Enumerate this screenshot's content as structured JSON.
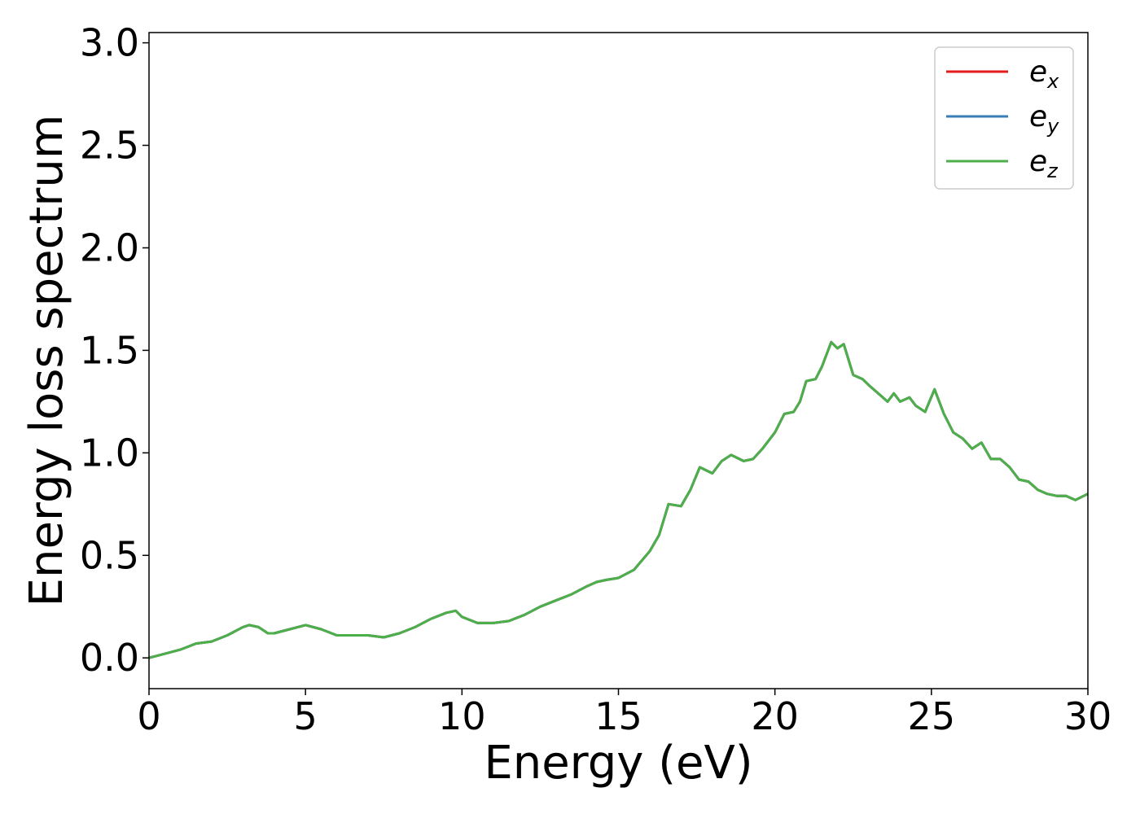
{
  "chart_data": {
    "type": "line",
    "xlabel": "Energy (eV)",
    "ylabel": "Energy loss spectrum",
    "xlim": [
      0,
      30
    ],
    "ylim": [
      -0.15,
      3.05
    ],
    "xticks": [
      "0",
      "5",
      "10",
      "15",
      "20",
      "25",
      "30"
    ],
    "yticks": [
      "0.0",
      "0.5",
      "1.0",
      "1.5",
      "2.0",
      "2.5",
      "3.0"
    ],
    "grid": false,
    "legend_position": "top-right",
    "x": [
      0,
      0.5,
      1.0,
      1.5,
      2.0,
      2.5,
      3.0,
      3.2,
      3.5,
      3.8,
      4.0,
      4.5,
      5.0,
      5.5,
      6.0,
      6.5,
      7.0,
      7.5,
      8.0,
      8.5,
      9.0,
      9.5,
      9.8,
      10.0,
      10.5,
      11.0,
      11.5,
      12.0,
      12.5,
      13.0,
      13.5,
      14.0,
      14.3,
      14.6,
      15.0,
      15.5,
      16.0,
      16.3,
      16.6,
      17.0,
      17.3,
      17.6,
      18.0,
      18.3,
      18.6,
      19.0,
      19.3,
      19.6,
      20.0,
      20.3,
      20.6,
      20.8,
      21.0,
      21.3,
      21.5,
      21.8,
      22.0,
      22.2,
      22.5,
      22.8,
      23.0,
      23.3,
      23.6,
      23.8,
      24.0,
      24.3,
      24.5,
      24.8,
      25.1,
      25.4,
      25.7,
      26.0,
      26.3,
      26.6,
      26.9,
      27.2,
      27.5,
      27.8,
      28.1,
      28.4,
      28.7,
      29.0,
      29.3,
      29.6,
      30.0
    ],
    "series": [
      {
        "name": "e_x",
        "color": "#e41a1c",
        "values": [
          0.0,
          0.02,
          0.04,
          0.07,
          0.08,
          0.11,
          0.15,
          0.16,
          0.15,
          0.12,
          0.12,
          0.14,
          0.16,
          0.14,
          0.11,
          0.11,
          0.11,
          0.1,
          0.12,
          0.15,
          0.19,
          0.22,
          0.23,
          0.2,
          0.17,
          0.17,
          0.18,
          0.21,
          0.25,
          0.28,
          0.31,
          0.35,
          0.37,
          0.38,
          0.39,
          0.43,
          0.52,
          0.6,
          0.75,
          0.74,
          0.82,
          0.93,
          0.9,
          0.96,
          0.99,
          0.96,
          0.97,
          1.02,
          1.1,
          1.19,
          1.2,
          1.25,
          1.35,
          1.36,
          1.42,
          1.54,
          1.51,
          1.53,
          1.38,
          1.36,
          1.33,
          1.29,
          1.25,
          1.29,
          1.25,
          1.27,
          1.23,
          1.2,
          1.31,
          1.19,
          1.1,
          1.07,
          1.02,
          1.05,
          0.97,
          0.97,
          0.93,
          0.87,
          0.86,
          0.82,
          0.8,
          0.79,
          0.79,
          0.77,
          0.8
        ]
      },
      {
        "name": "e_y",
        "color": "#377eb8",
        "values": [
          0.0,
          0.02,
          0.04,
          0.07,
          0.08,
          0.11,
          0.15,
          0.16,
          0.15,
          0.12,
          0.12,
          0.14,
          0.16,
          0.14,
          0.11,
          0.11,
          0.11,
          0.1,
          0.12,
          0.15,
          0.19,
          0.22,
          0.23,
          0.2,
          0.17,
          0.17,
          0.18,
          0.21,
          0.25,
          0.28,
          0.31,
          0.35,
          0.37,
          0.38,
          0.39,
          0.43,
          0.52,
          0.6,
          0.75,
          0.74,
          0.82,
          0.93,
          0.9,
          0.96,
          0.99,
          0.96,
          0.97,
          1.02,
          1.1,
          1.19,
          1.2,
          1.25,
          1.35,
          1.36,
          1.42,
          1.54,
          1.51,
          1.53,
          1.38,
          1.36,
          1.33,
          1.29,
          1.25,
          1.29,
          1.25,
          1.27,
          1.23,
          1.2,
          1.31,
          1.19,
          1.1,
          1.07,
          1.02,
          1.05,
          0.97,
          0.97,
          0.93,
          0.87,
          0.86,
          0.82,
          0.8,
          0.79,
          0.79,
          0.77,
          0.8
        ]
      },
      {
        "name": "e_z",
        "color": "#4daf4a",
        "values": [
          0.0,
          0.02,
          0.04,
          0.07,
          0.08,
          0.11,
          0.15,
          0.16,
          0.15,
          0.12,
          0.12,
          0.14,
          0.16,
          0.14,
          0.11,
          0.11,
          0.11,
          0.1,
          0.12,
          0.15,
          0.19,
          0.22,
          0.23,
          0.2,
          0.17,
          0.17,
          0.18,
          0.21,
          0.25,
          0.28,
          0.31,
          0.35,
          0.37,
          0.38,
          0.39,
          0.43,
          0.52,
          0.6,
          0.75,
          0.74,
          0.82,
          0.93,
          0.9,
          0.96,
          0.99,
          0.96,
          0.97,
          1.02,
          1.1,
          1.19,
          1.2,
          1.25,
          1.35,
          1.36,
          1.42,
          1.54,
          1.51,
          1.53,
          1.38,
          1.36,
          1.33,
          1.29,
          1.25,
          1.29,
          1.25,
          1.27,
          1.23,
          1.2,
          1.31,
          1.19,
          1.1,
          1.07,
          1.02,
          1.05,
          0.97,
          0.97,
          0.93,
          0.87,
          0.86,
          0.82,
          0.8,
          0.79,
          0.79,
          0.77,
          0.8
        ]
      }
    ],
    "legend": [
      {
        "base": "e",
        "sub": "x"
      },
      {
        "base": "e",
        "sub": "y"
      },
      {
        "base": "e",
        "sub": "z"
      }
    ]
  }
}
